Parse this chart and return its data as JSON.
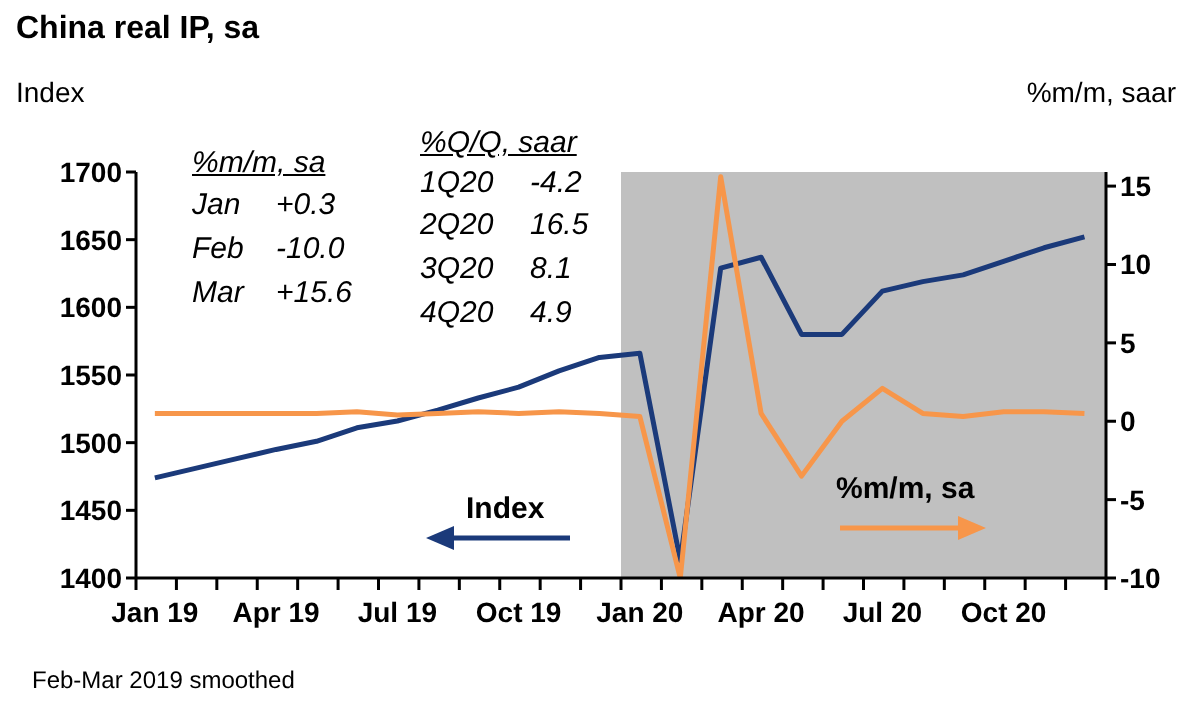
{
  "chart_data": {
    "type": "line",
    "title": "China real IP, sa",
    "ylabel": "Index",
    "y2label": "%m/m, saar",
    "x": [
      "2019-01-15",
      "2019-02-15",
      "2019-03-15",
      "2019-04-15",
      "2019-05-15",
      "2019-06-15",
      "2019-07-15",
      "2019-08-15",
      "2019-09-15",
      "2019-10-15",
      "2019-11-15",
      "2019-12-15",
      "2020-01-15",
      "2020-02-15",
      "2020-03-15",
      "2020-04-15",
      "2020-05-15",
      "2020-06-15",
      "2020-07-15",
      "2020-08-15",
      "2020-09-15",
      "2020-10-15",
      "2020-11-15",
      "2020-12-15"
    ],
    "series": [
      {
        "name": "Index",
        "color": "#1b3a7a",
        "values": [
          1474,
          1481,
          1488,
          1495,
          1501,
          1511,
          1516,
          1524,
          1533,
          1541,
          1553,
          1563,
          1566,
          1413,
          1629,
          1637,
          1580,
          1580,
          1612,
          1619,
          1624,
          1634,
          1644,
          1652
        ]
      },
      {
        "name": "%m/m, sa",
        "color": "#f7964a",
        "axis": "y2",
        "values": [
          0.5,
          0.5,
          0.5,
          0.5,
          0.5,
          0.6,
          0.4,
          0.5,
          0.6,
          0.5,
          0.6,
          0.5,
          0.3,
          -10.0,
          15.6,
          0.5,
          -3.5,
          0,
          2.1,
          0.5,
          0.3,
          0.6,
          0.6,
          0.5
        ]
      }
    ],
    "xlim": [
      "2019-01",
      "2021-01"
    ],
    "xticks": [
      {
        "value": "2019-01-15",
        "label": "Jan 19"
      },
      {
        "value": "2019-04-15",
        "label": "Apr 19"
      },
      {
        "value": "2019-07-15",
        "label": "Jul 19"
      },
      {
        "value": "2019-10-15",
        "label": "Oct 19"
      },
      {
        "value": "2020-01-15",
        "label": "Jan 20"
      },
      {
        "value": "2020-04-15",
        "label": "Apr 20"
      },
      {
        "value": "2020-07-15",
        "label": "Jul 20"
      },
      {
        "value": "2020-10-15",
        "label": "Oct 20"
      },
      {
        "value": "2019-01",
        "label": null
      },
      {
        "value": "2019-02",
        "label": null
      },
      {
        "value": "2019-03",
        "label": null
      },
      {
        "value": "2019-04",
        "label": null
      },
      {
        "value": "2019-05",
        "label": null
      },
      {
        "value": "2019-06",
        "label": null
      },
      {
        "value": "2019-07",
        "label": null
      },
      {
        "value": "2019-08",
        "label": null
      },
      {
        "value": "2019-09",
        "label": null
      },
      {
        "value": "2019-10",
        "label": null
      },
      {
        "value": "2019-11",
        "label": null
      },
      {
        "value": "2019-12",
        "label": null
      },
      {
        "value": "2020-01",
        "label": null
      },
      {
        "value": "2020-02",
        "label": null
      },
      {
        "value": "2020-03",
        "label": null
      },
      {
        "value": "2020-04",
        "label": null
      },
      {
        "value": "2020-05",
        "label": null
      },
      {
        "value": "2020-06",
        "label": null
      },
      {
        "value": "2020-07",
        "label": null
      },
      {
        "value": "2020-08",
        "label": null
      },
      {
        "value": "2020-09",
        "label": null
      },
      {
        "value": "2020-10",
        "label": null
      },
      {
        "value": "2020-11",
        "label": null
      },
      {
        "value": "2020-12",
        "label": null
      },
      {
        "value": "2021-01",
        "label": null
      }
    ],
    "ylim": [
      1400,
      1700
    ],
    "yticks": [
      1400,
      1450,
      1500,
      1550,
      1600,
      1650,
      1700
    ],
    "y2lim": [
      -10,
      15.9
    ],
    "y2ticks": [
      -10,
      -5,
      0,
      5,
      10,
      15
    ],
    "bands": [
      {
        "axis": "x",
        "from": "2020-01",
        "to": "2021-01",
        "color": "#c0c0c0"
      }
    ],
    "annotations": [
      "%m/m, sa",
      "Jan +0.3",
      "Feb -10.0",
      "Mar +15.6",
      "%Q/Q, saar",
      "1Q20 -4.2",
      "2Q20 16.5",
      "3Q20 8.1",
      "4Q20 4.9",
      "Feb-Mar 2019 smoothed"
    ],
    "legend": false,
    "marker": "none",
    "line_style": "solid"
  }
}
